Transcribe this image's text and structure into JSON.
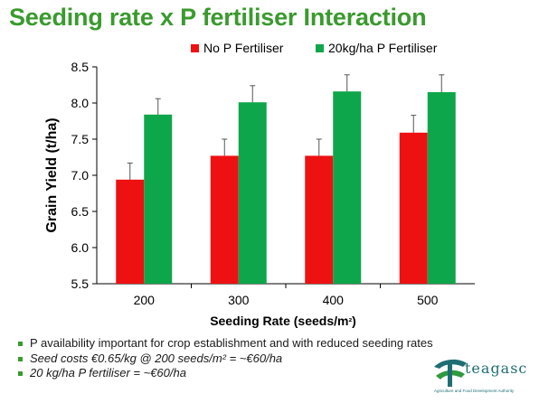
{
  "title": "Seeding rate x P fertiliser Interaction",
  "chart_data": {
    "type": "bar",
    "categories": [
      "200",
      "300",
      "400",
      "500"
    ],
    "series": [
      {
        "name": "No P Fertiliser",
        "color": "#ee1111",
        "values": [
          6.94,
          7.27,
          7.27,
          7.59
        ],
        "errors": [
          0.23,
          0.23,
          0.23,
          0.24
        ]
      },
      {
        "name": "20kg/ha P Fertiliser",
        "color": "#0ea64a",
        "values": [
          7.84,
          8.01,
          8.16,
          8.15
        ],
        "errors": [
          0.22,
          0.23,
          0.23,
          0.24
        ]
      }
    ],
    "xlabel": "Seeding Rate (seeds/m²)",
    "ylabel": "Grain Yield (t/ha)",
    "ylim": [
      5.5,
      8.5
    ],
    "yticks": [
      "5.5",
      "6.0",
      "6.5",
      "7.0",
      "7.5",
      "8.0",
      "8.5"
    ],
    "grid": false,
    "legend": "top"
  },
  "bullets": [
    {
      "text": "P availability important for crop establishment and with reduced seeding rates",
      "italic": false
    },
    {
      "text": "Seed costs €0.65/kg  @ 200 seeds/m² = ~€60/ha",
      "italic": true
    },
    {
      "text": "20 kg/ha P fertiliser = ~€60/ha",
      "italic": true
    }
  ],
  "logo": {
    "word": "teagasc",
    "tagline": "Agriculture and Food Development Authority",
    "color": "#1f6e74"
  }
}
